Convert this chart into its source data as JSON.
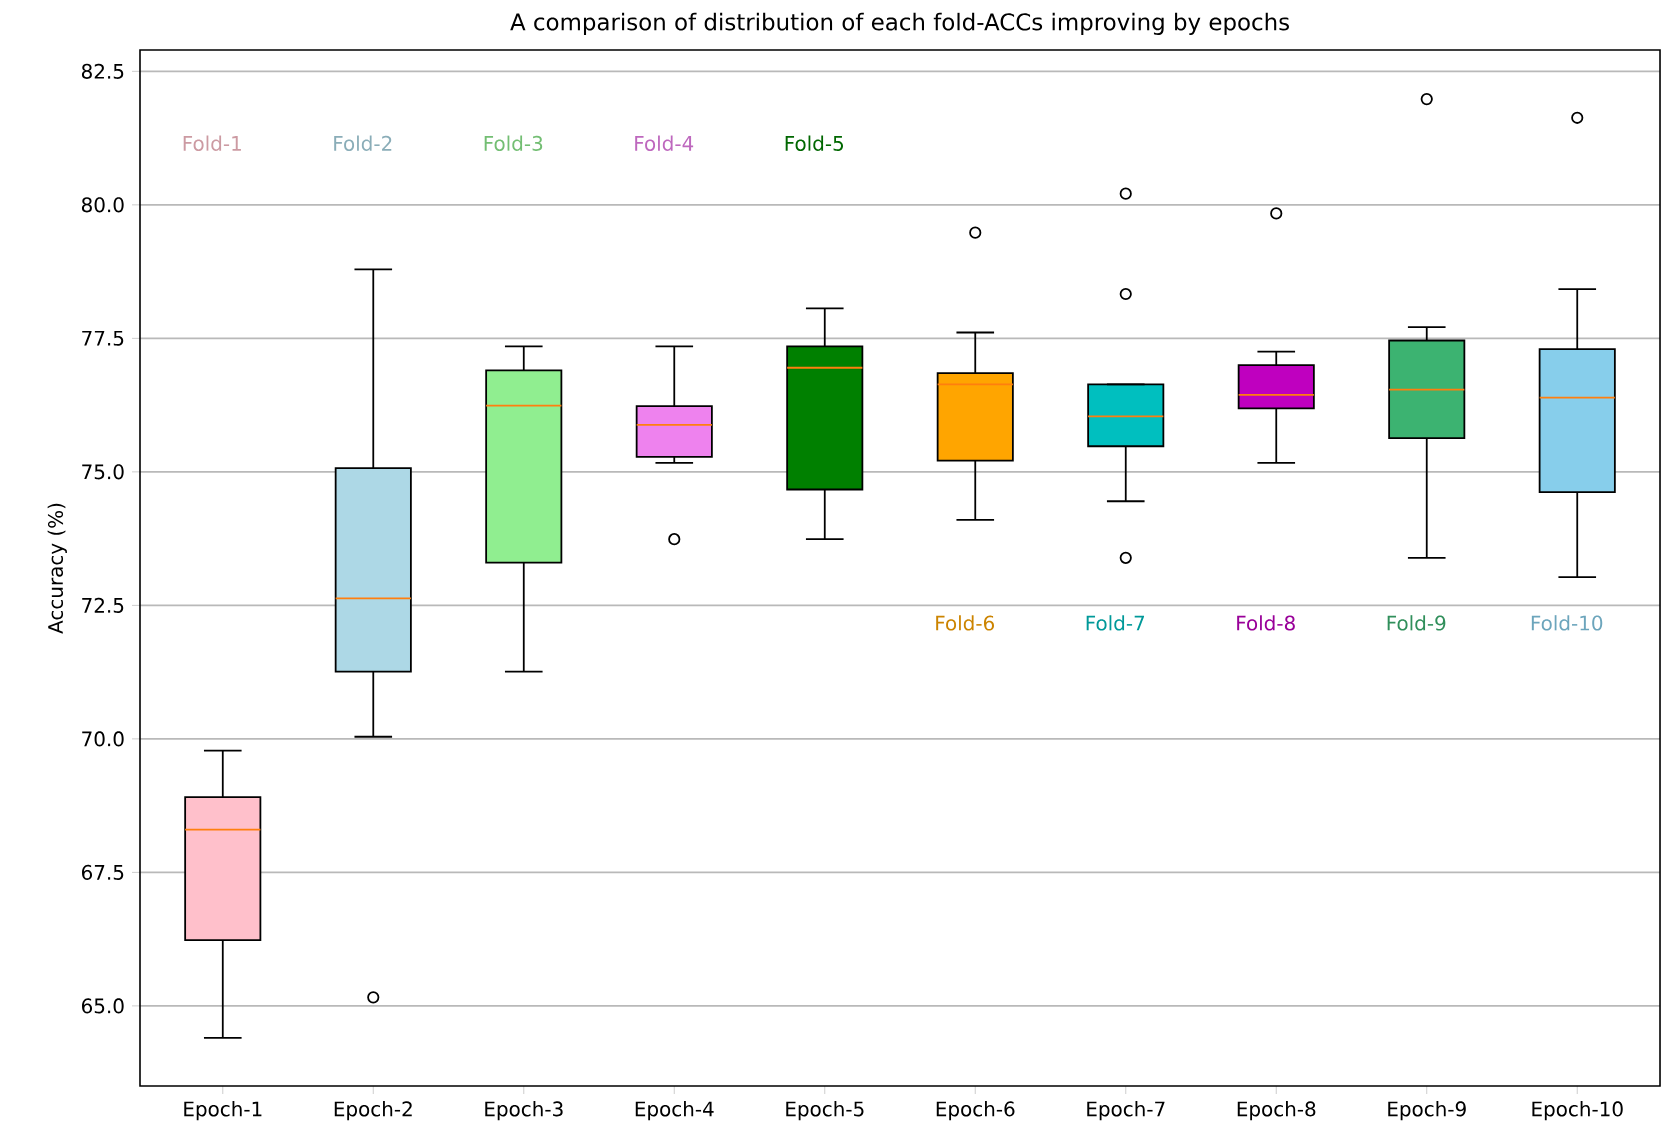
{
  "chart_data": {
    "type": "box",
    "title": "A comparison of distribution of each fold-ACCs improving by epochs",
    "ylabel": "Accuracy (%)",
    "categories": [
      "Epoch-1",
      "Epoch-2",
      "Epoch-3",
      "Epoch-4",
      "Epoch-5",
      "Epoch-6",
      "Epoch-7",
      "Epoch-8",
      "Epoch-9",
      "Epoch-10"
    ],
    "boxes": [
      {
        "low": 64.4,
        "q1": 66.23,
        "median": 68.3,
        "q3": 68.91,
        "high": 69.78
      },
      {
        "low": 70.04,
        "q1": 71.26,
        "median": 72.63,
        "q3": 75.07,
        "high": 78.79,
        "outliers": [
          65.16
        ]
      },
      {
        "low": 71.26,
        "q1": 73.3,
        "median": 76.24,
        "q3": 76.9,
        "high": 77.35
      },
      {
        "low": 75.17,
        "q1": 75.28,
        "median": 75.88,
        "q3": 76.23,
        "high": 77.35,
        "outliers": [
          73.74
        ]
      },
      {
        "low": 73.74,
        "q1": 74.67,
        "median": 76.95,
        "q3": 77.35,
        "high": 78.06
      },
      {
        "low": 74.1,
        "q1": 75.21,
        "median": 76.64,
        "q3": 76.85,
        "high": 77.61,
        "outliers": [
          79.48
        ]
      },
      {
        "low": 74.45,
        "q1": 75.48,
        "median": 76.04,
        "q3": 76.64,
        "high": 76.64,
        "outliers": [
          80.21,
          78.33,
          73.39
        ]
      },
      {
        "low": 75.17,
        "q1": 76.19,
        "median": 76.44,
        "q3": 77.0,
        "high": 77.25,
        "outliers": [
          79.84
        ]
      },
      {
        "low": 73.39,
        "q1": 75.63,
        "median": 76.54,
        "q3": 77.46,
        "high": 77.71,
        "outliers": [
          81.98
        ]
      },
      {
        "low": 73.03,
        "q1": 74.62,
        "median": 76.39,
        "q3": 77.3,
        "high": 78.42,
        "outliers": [
          81.63
        ]
      }
    ],
    "colors": [
      "#ffc0cb",
      "#add8e6",
      "#90ee90",
      "#ee82ee",
      "#008000",
      "#ffa500",
      "#00bfbf",
      "#bf00bf",
      "#3cb371",
      "#87ceeb"
    ],
    "annotations": [
      "Fold-1",
      "Fold-2",
      "Fold-3",
      "Fold-4",
      "Fold-5",
      "Fold-6",
      "Fold-7",
      "Fold-8",
      "Fold-9",
      "Fold-10"
    ],
    "ylim": [
      63.5,
      82.9
    ],
    "yticks": [
      {
        "value": 65,
        "label": "65.0"
      },
      {
        "value": 67.5,
        "label": "67.5"
      },
      {
        "value": 70,
        "label": "70.0"
      },
      {
        "value": 72.5,
        "label": "72.5"
      },
      {
        "value": 75,
        "label": "75.0"
      },
      {
        "value": 77.5,
        "label": "77.5"
      },
      {
        "value": 80,
        "label": "80.0"
      },
      {
        "value": 82.5,
        "label": "82.5"
      }
    ],
    "grid": "y"
  }
}
